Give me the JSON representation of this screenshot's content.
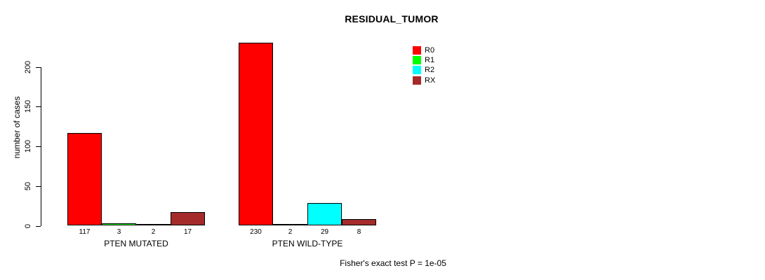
{
  "chart_data": {
    "type": "bar",
    "title": "RESIDUAL_TUMOR",
    "ylabel": "number of cases",
    "xlabel": "",
    "ylim": [
      0,
      200
    ],
    "yticks": [
      0,
      50,
      100,
      150,
      200
    ],
    "grid": false,
    "legend_position": "top-right",
    "categories": [
      "PTEN MUTATED",
      "PTEN WILD-TYPE"
    ],
    "series": [
      {
        "name": "R0",
        "color": "#FF0000",
        "values": [
          117,
          230
        ]
      },
      {
        "name": "R1",
        "color": "#00FF00",
        "values": [
          3,
          2
        ]
      },
      {
        "name": "R2",
        "color": "#00FFFF",
        "values": [
          2,
          29
        ]
      },
      {
        "name": "RX",
        "color": "#A52A2A",
        "values": [
          17,
          8
        ]
      }
    ],
    "bar_value_labels": [
      [
        "117",
        "3",
        "2",
        "17"
      ],
      [
        "230",
        "2",
        "29",
        "8"
      ]
    ],
    "annotation": "Fisher's exact test P = 1e-05"
  }
}
